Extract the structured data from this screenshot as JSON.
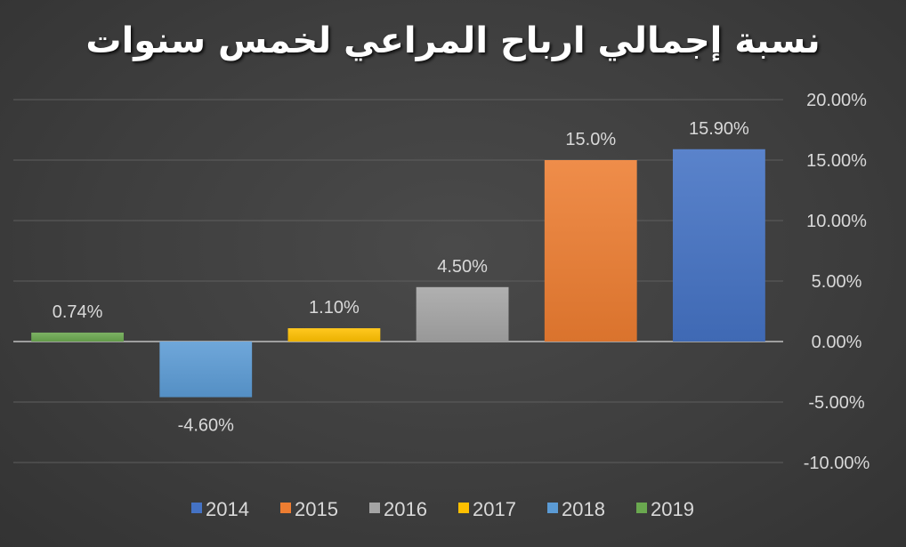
{
  "chart_data": {
    "type": "bar",
    "title": "نسبة إجمالي ارباح المراعي لخمس  سنوات",
    "categories": [
      "2019",
      "2018",
      "2017",
      "2016",
      "2015",
      "2014"
    ],
    "values": [
      0.74,
      -4.6,
      1.1,
      4.5,
      15.0,
      15.9
    ],
    "data_labels": [
      "0.74%",
      "-4.60%",
      "1.10%",
      "4.50%",
      "15.0%",
      "15.90%"
    ],
    "colors": [
      "#6aa84f",
      "#5b9bd5",
      "#ffc000",
      "#a5a5a5",
      "#ed7d31",
      "#4472c4"
    ],
    "ylim": [
      -10,
      20
    ],
    "y_ticks": [
      20,
      15,
      10,
      5,
      0,
      -5,
      -10
    ],
    "y_tick_labels": [
      "20.00%",
      "15.00%",
      "10.00%",
      "5.00%",
      "0.00%",
      "-5.00%",
      "-10.00%"
    ],
    "y_axis_side": "right",
    "grid": true,
    "legend": {
      "placement": "bottom",
      "items": [
        {
          "label": "2014",
          "color": "#4472c4"
        },
        {
          "label": "2015",
          "color": "#ed7d31"
        },
        {
          "label": "2016",
          "color": "#a5a5a5"
        },
        {
          "label": "2017",
          "color": "#ffc000"
        },
        {
          "label": "2018",
          "color": "#5b9bd5"
        },
        {
          "label": "2019",
          "color": "#6aa84f"
        }
      ]
    }
  }
}
